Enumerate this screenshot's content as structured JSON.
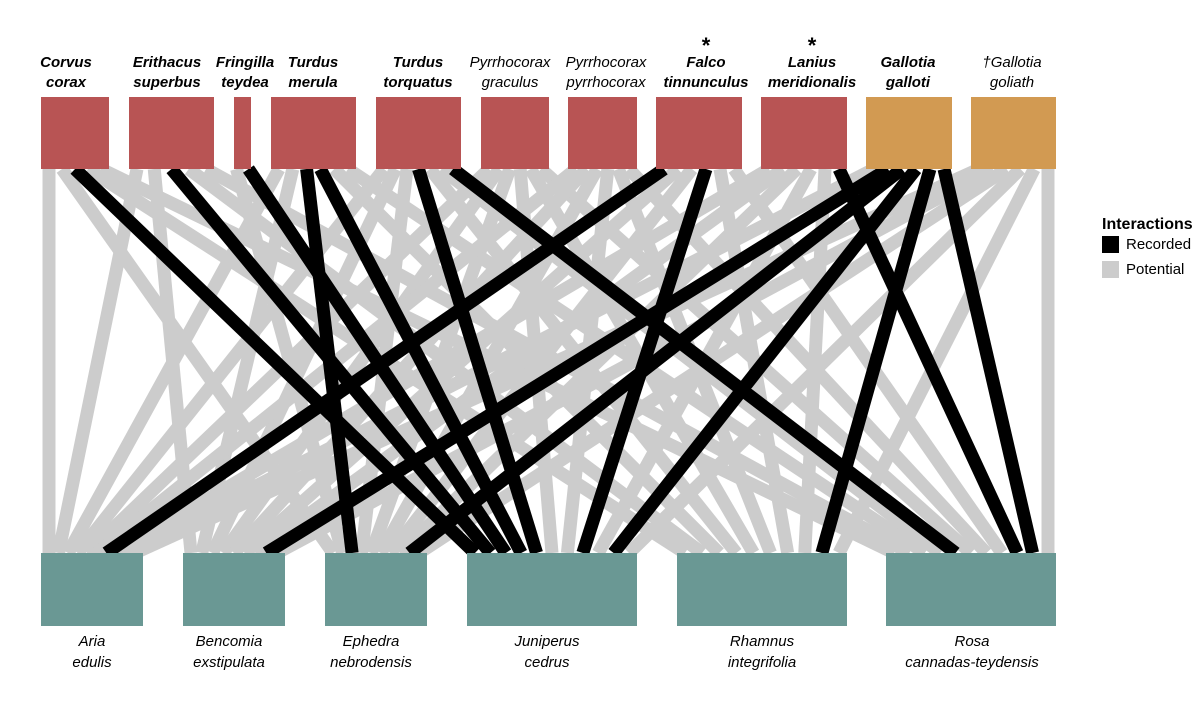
{
  "colors": {
    "recorded": "#000000",
    "potential": "#cccccc",
    "bird": "#b85454",
    "lizard": "#d29a52",
    "plant": "#6a9894"
  },
  "legend": {
    "title": "Interactions",
    "recorded": "Recorded",
    "potential": "Potential"
  },
  "top_nodes": [
    {
      "id": "corvus",
      "lines": [
        "Corvus",
        "corax"
      ],
      "bold": true,
      "group": "bird",
      "marker": ""
    },
    {
      "id": "erithacus",
      "lines": [
        "Erithacus",
        "superbus"
      ],
      "bold": true,
      "group": "bird",
      "marker": ""
    },
    {
      "id": "fringilla",
      "lines": [
        "Fringilla",
        "teydea"
      ],
      "bold": true,
      "group": "bird",
      "marker": ""
    },
    {
      "id": "turdusm",
      "lines": [
        "Turdus",
        "merula"
      ],
      "bold": true,
      "group": "bird",
      "marker": ""
    },
    {
      "id": "turdust",
      "lines": [
        "Turdus",
        "torquatus"
      ],
      "bold": true,
      "group": "bird",
      "marker": ""
    },
    {
      "id": "pyrrg",
      "lines": [
        "Pyrrhocorax",
        "graculus"
      ],
      "bold": false,
      "group": "bird",
      "marker": ""
    },
    {
      "id": "pyrrp",
      "lines": [
        "Pyrrhocorax",
        "pyrrhocorax"
      ],
      "bold": false,
      "group": "bird",
      "marker": ""
    },
    {
      "id": "falco",
      "lines": [
        "Falco",
        "tinnunculus"
      ],
      "bold": true,
      "group": "bird",
      "marker": "*"
    },
    {
      "id": "lanius",
      "lines": [
        "Lanius",
        "meridionalis"
      ],
      "bold": true,
      "group": "bird",
      "marker": "*"
    },
    {
      "id": "gallotia",
      "lines": [
        "Gallotia",
        "galloti"
      ],
      "bold": true,
      "group": "lizard",
      "marker": ""
    },
    {
      "id": "goliath",
      "lines": [
        "†Gallotia",
        "goliath"
      ],
      "bold": false,
      "group": "lizard",
      "marker": ""
    }
  ],
  "bottom_nodes": [
    {
      "id": "aria",
      "lines": [
        "Aria",
        "edulis"
      ]
    },
    {
      "id": "bencomia",
      "lines": [
        "Bencomia",
        "exstipulata"
      ]
    },
    {
      "id": "ephedra",
      "lines": [
        "Ephedra",
        "nebrodensis"
      ]
    },
    {
      "id": "juniperus",
      "lines": [
        "Juniperus",
        "cedrus"
      ]
    },
    {
      "id": "rhamnus",
      "lines": [
        "Rhamnus",
        "integrifolia"
      ]
    },
    {
      "id": "rosa",
      "lines": [
        "Rosa",
        "cannadas-teydensis"
      ]
    }
  ],
  "links": [
    {
      "from": "corvus",
      "to": "aria",
      "type": "potential"
    },
    {
      "from": "corvus",
      "to": "ephedra",
      "type": "potential"
    },
    {
      "from": "corvus",
      "to": "rhamnus",
      "type": "potential"
    },
    {
      "from": "corvus",
      "to": "rosa",
      "type": "potential"
    },
    {
      "from": "erithacus",
      "to": "aria",
      "type": "potential"
    },
    {
      "from": "erithacus",
      "to": "bencomia",
      "type": "potential"
    },
    {
      "from": "erithacus",
      "to": "rhamnus",
      "type": "potential"
    },
    {
      "from": "erithacus",
      "to": "rosa",
      "type": "potential"
    },
    {
      "from": "fringilla",
      "to": "ephedra",
      "type": "potential"
    },
    {
      "from": "turdusm",
      "to": "aria",
      "type": "potential"
    },
    {
      "from": "turdusm",
      "to": "bencomia",
      "type": "potential"
    },
    {
      "from": "turdusm",
      "to": "rhamnus",
      "type": "potential"
    },
    {
      "from": "turdusm",
      "to": "rosa",
      "type": "potential"
    },
    {
      "from": "turdust",
      "to": "aria",
      "type": "potential"
    },
    {
      "from": "turdust",
      "to": "bencomia",
      "type": "potential"
    },
    {
      "from": "turdust",
      "to": "ephedra",
      "type": "potential"
    },
    {
      "from": "turdust",
      "to": "rhamnus",
      "type": "potential"
    },
    {
      "from": "turdust",
      "to": "rosa",
      "type": "potential"
    },
    {
      "from": "pyrrg",
      "to": "aria",
      "type": "potential"
    },
    {
      "from": "pyrrg",
      "to": "bencomia",
      "type": "potential"
    },
    {
      "from": "pyrrg",
      "to": "ephedra",
      "type": "potential"
    },
    {
      "from": "pyrrg",
      "to": "juniperus",
      "type": "potential"
    },
    {
      "from": "pyrrg",
      "to": "rhamnus",
      "type": "potential"
    },
    {
      "from": "pyrrg",
      "to": "rosa",
      "type": "potential"
    },
    {
      "from": "pyrrp",
      "to": "aria",
      "type": "potential"
    },
    {
      "from": "pyrrp",
      "to": "bencomia",
      "type": "potential"
    },
    {
      "from": "pyrrp",
      "to": "ephedra",
      "type": "potential"
    },
    {
      "from": "pyrrp",
      "to": "juniperus",
      "type": "potential"
    },
    {
      "from": "pyrrp",
      "to": "rhamnus",
      "type": "potential"
    },
    {
      "from": "pyrrp",
      "to": "rosa",
      "type": "potential"
    },
    {
      "from": "falco",
      "to": "bencomia",
      "type": "potential"
    },
    {
      "from": "falco",
      "to": "ephedra",
      "type": "potential"
    },
    {
      "from": "falco",
      "to": "rhamnus",
      "type": "potential"
    },
    {
      "from": "falco",
      "to": "rosa",
      "type": "potential"
    },
    {
      "from": "lanius",
      "to": "aria",
      "type": "potential"
    },
    {
      "from": "lanius",
      "to": "bencomia",
      "type": "potential"
    },
    {
      "from": "lanius",
      "to": "ephedra",
      "type": "potential"
    },
    {
      "from": "lanius",
      "to": "juniperus",
      "type": "potential"
    },
    {
      "from": "lanius",
      "to": "rhamnus",
      "type": "potential"
    },
    {
      "from": "gallotia",
      "to": "aria",
      "type": "potential"
    },
    {
      "from": "goliath",
      "to": "aria",
      "type": "potential"
    },
    {
      "from": "goliath",
      "to": "bencomia",
      "type": "potential"
    },
    {
      "from": "goliath",
      "to": "ephedra",
      "type": "potential"
    },
    {
      "from": "goliath",
      "to": "juniperus",
      "type": "potential"
    },
    {
      "from": "goliath",
      "to": "rhamnus",
      "type": "potential"
    },
    {
      "from": "goliath",
      "to": "rosa",
      "type": "potential"
    },
    {
      "from": "corvus",
      "to": "juniperus",
      "type": "recorded"
    },
    {
      "from": "erithacus",
      "to": "juniperus",
      "type": "recorded"
    },
    {
      "from": "fringilla",
      "to": "juniperus",
      "type": "recorded"
    },
    {
      "from": "turdusm",
      "to": "juniperus",
      "type": "recorded"
    },
    {
      "from": "turdusm",
      "to": "ephedra",
      "type": "recorded"
    },
    {
      "from": "turdust",
      "to": "juniperus",
      "type": "recorded"
    },
    {
      "from": "turdust",
      "to": "rosa",
      "type": "recorded"
    },
    {
      "from": "falco",
      "to": "aria",
      "type": "recorded"
    },
    {
      "from": "falco",
      "to": "juniperus",
      "type": "recorded"
    },
    {
      "from": "lanius",
      "to": "rosa",
      "type": "recorded"
    },
    {
      "from": "gallotia",
      "to": "bencomia",
      "type": "recorded"
    },
    {
      "from": "gallotia",
      "to": "ephedra",
      "type": "recorded"
    },
    {
      "from": "gallotia",
      "to": "juniperus",
      "type": "recorded"
    },
    {
      "from": "gallotia",
      "to": "rhamnus",
      "type": "recorded"
    },
    {
      "from": "gallotia",
      "to": "rosa",
      "type": "recorded"
    }
  ]
}
